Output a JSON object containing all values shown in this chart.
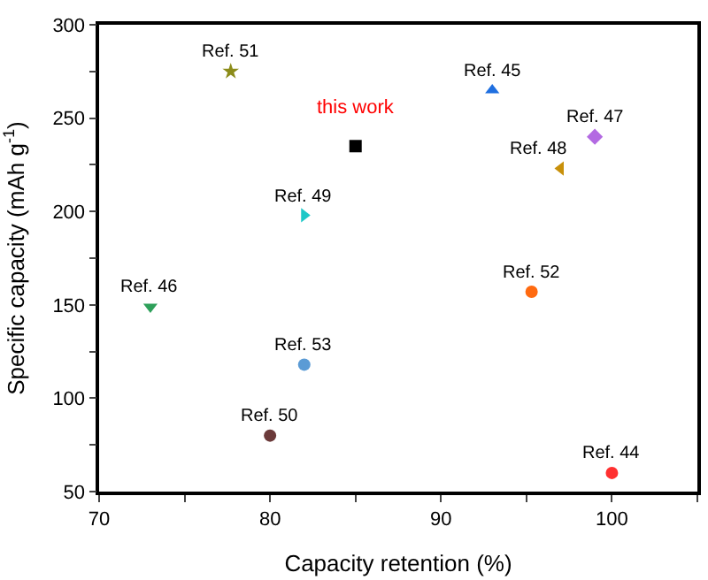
{
  "chart_data": {
    "type": "scatter",
    "xlabel": "Capacity retention (%)",
    "ylabel": "Specific capacity (mAh g$^{-1}$)",
    "xlim": [
      70,
      105
    ],
    "xticks": [
      70,
      {
        "value": 75,
        "label": null
      },
      80,
      {
        "value": 85,
        "label": null
      },
      90,
      {
        "value": 95,
        "label": null
      },
      100,
      {
        "value": 105,
        "label": null
      }
    ],
    "ylim": [
      50,
      300
    ],
    "yticks": [
      50,
      {
        "value": 75,
        "label": null
      },
      100,
      {
        "value": 125,
        "label": null
      },
      150,
      {
        "value": 175,
        "label": null
      },
      200,
      {
        "value": 225,
        "label": null
      },
      250,
      {
        "value": 275,
        "label": null
      },
      300
    ],
    "legend": false,
    "annotations": [
      {
        "text": "this work",
        "x": 85,
        "y": 235
      }
    ],
    "series": [
      {
        "name": "Ref. 51",
        "color": "#8c8c1a",
        "marker": "star",
        "x": [
          77.7
        ],
        "values": [
          275
        ]
      },
      {
        "name": "Ref. 45",
        "color": "#1f6fe0",
        "marker": "triangle",
        "x": [
          93
        ],
        "values": [
          265
        ]
      },
      {
        "color": "#000000",
        "marker": "square",
        "x": [
          85
        ],
        "values": [
          235
        ]
      },
      {
        "name": "Ref. 47",
        "color": "#b36ae2",
        "marker": "diamond",
        "x": [
          99
        ],
        "values": [
          240
        ]
      },
      {
        "name": "Ref. 48",
        "color": "#c8900a",
        "marker": "triangle-left",
        "x": [
          97
        ],
        "values": [
          223
        ]
      },
      {
        "name": "Ref. 49",
        "color": "#1ec8c8",
        "marker": "triangle-right",
        "x": [
          82
        ],
        "values": [
          198
        ]
      },
      {
        "name": "Ref. 46",
        "color": "#2ea05a",
        "marker": "triangle-down",
        "x": [
          73
        ],
        "values": [
          149
        ]
      },
      {
        "name": "Ref. 52",
        "color": "#ff6a10",
        "x": [
          95.3
        ],
        "values": [
          157
        ]
      },
      {
        "name": "Ref. 53",
        "color": "#5b9bd5",
        "marker": "circle",
        "x": [
          82
        ],
        "values": [
          118
        ]
      },
      {
        "name": "Ref. 50",
        "color": "#6b3a3a",
        "x": [
          80
        ],
        "values": [
          80
        ]
      },
      {
        "name": "Ref. 44",
        "color": "#ff3030",
        "marker": "circle",
        "x": [
          100
        ],
        "values": [
          60
        ]
      }
    ]
  }
}
